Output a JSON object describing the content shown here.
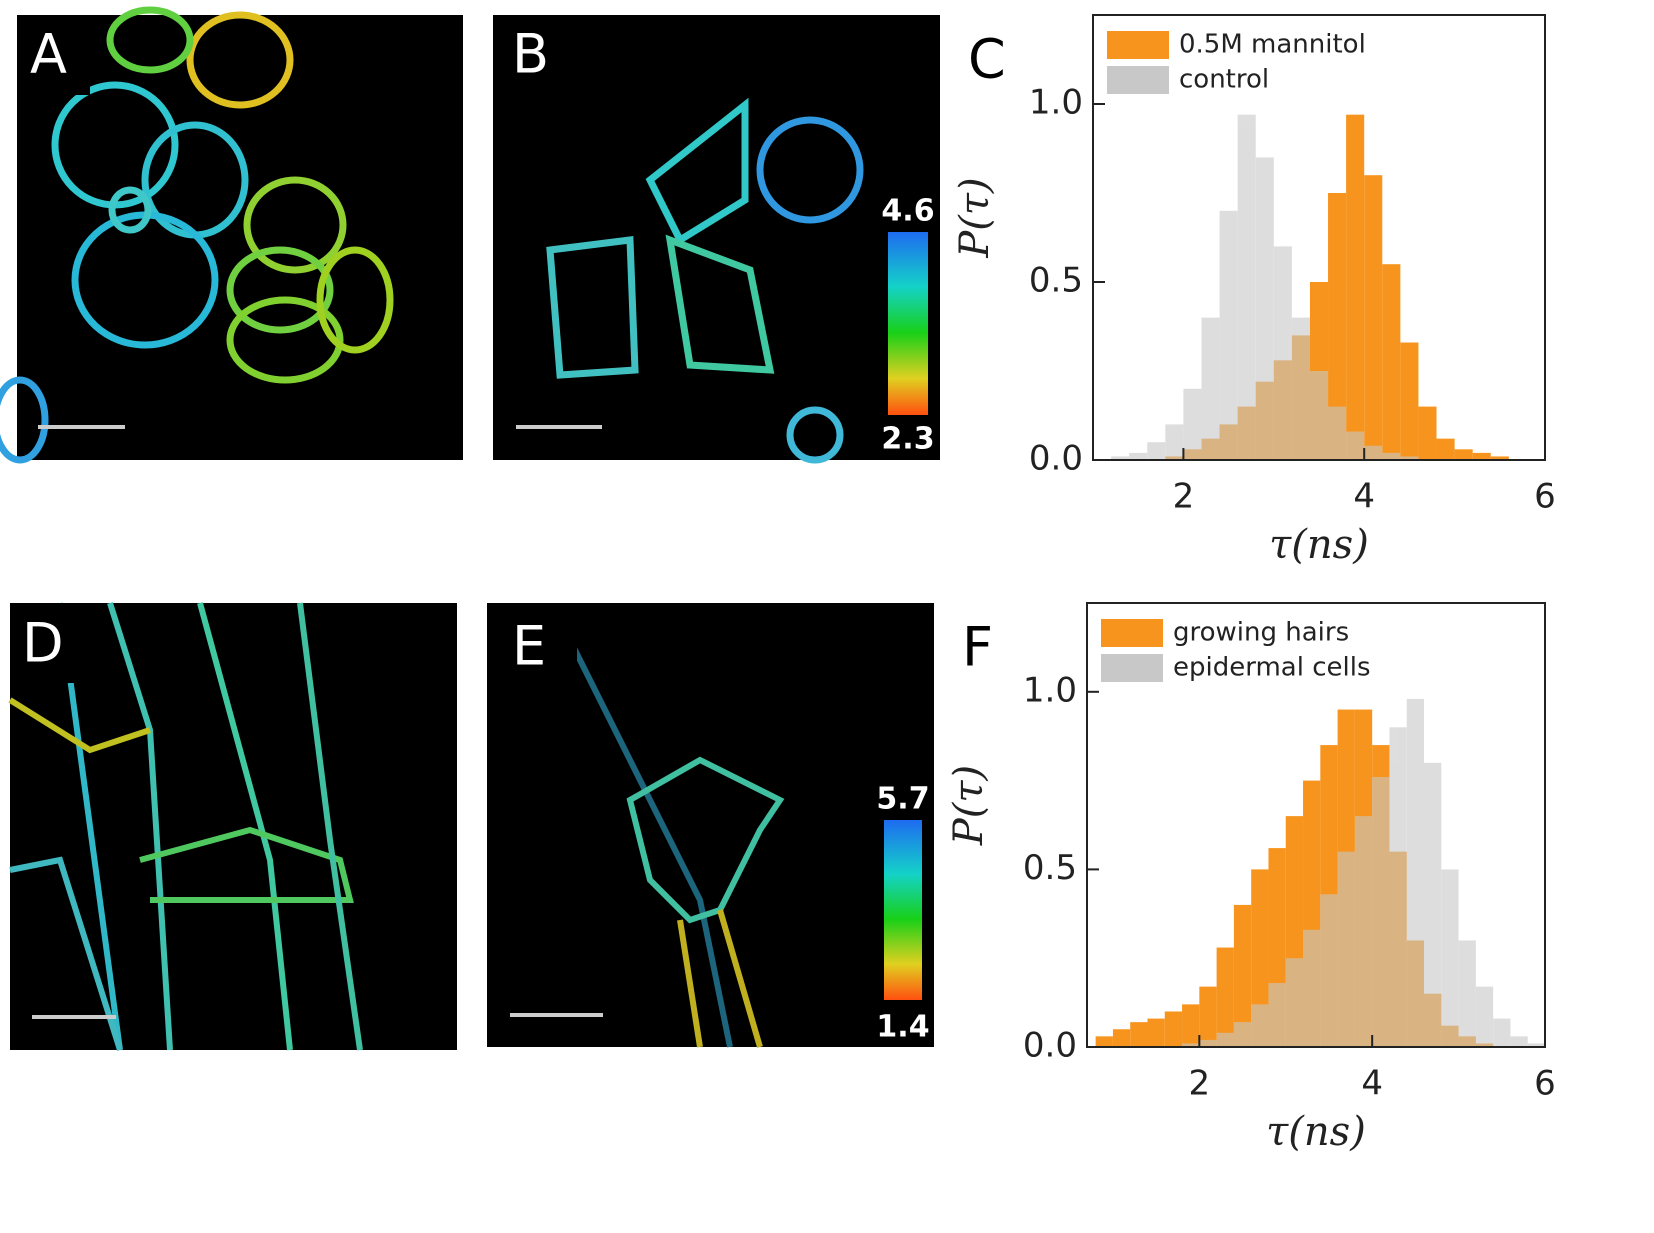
{
  "images": [
    {
      "label": "A"
    },
    {
      "label": "B",
      "colorbar_max": 4.6,
      "colorbar_min": 2.3
    },
    {
      "label": "D"
    },
    {
      "label": "E",
      "colorbar_max": 5.7,
      "colorbar_min": 1.4
    }
  ],
  "chart_data": [
    {
      "type": "histogram",
      "panel_label": "C",
      "xlabel": "τ(ns)",
      "ylabel": "P(τ)",
      "xlim": [
        1,
        6
      ],
      "ylim": [
        0,
        1.25
      ],
      "xticks": [
        2,
        4,
        6
      ],
      "yticks": [
        {
          "value": 0,
          "label": "0.0"
        },
        0.5,
        {
          "value": 1,
          "label": "1.0"
        }
      ],
      "legend": "upper left",
      "bins": [
        1.0,
        1.2,
        1.4,
        1.6,
        1.8,
        2.0,
        2.2,
        2.4,
        2.6,
        2.8,
        3.0,
        3.2,
        3.4,
        3.6,
        3.8,
        4.0,
        4.2,
        4.4,
        4.6,
        4.8,
        5.0,
        5.2,
        5.4,
        5.6,
        5.8,
        6.0
      ],
      "series": [
        {
          "name": "0.5M mannitol",
          "color": "#f7941d",
          "values": [
            0,
            0,
            0,
            0,
            0.01,
            0.03,
            0.06,
            0.1,
            0.15,
            0.22,
            0.28,
            0.35,
            0.5,
            0.75,
            0.97,
            0.8,
            0.55,
            0.33,
            0.15,
            0.06,
            0.03,
            0.02,
            0.01,
            0,
            0
          ]
        },
        {
          "name": "control",
          "color": "#c8c8c8",
          "values": [
            0,
            0.01,
            0.02,
            0.05,
            0.1,
            0.2,
            0.4,
            0.7,
            0.97,
            0.85,
            0.6,
            0.4,
            0.25,
            0.15,
            0.08,
            0.04,
            0.02,
            0.01,
            0,
            0,
            0,
            0,
            0,
            0,
            0
          ]
        }
      ]
    },
    {
      "type": "histogram",
      "panel_label": "F",
      "xlabel": "τ(ns)",
      "ylabel": "P(τ)",
      "xlim": [
        0.7,
        6
      ],
      "ylim": [
        0,
        1.25
      ],
      "xticks": [
        2,
        4,
        6
      ],
      "yticks": [
        {
          "value": 0,
          "label": "0.0"
        },
        0.5,
        {
          "value": 1,
          "label": "1.0"
        }
      ],
      "legend": "upper left",
      "bins": [
        0.8,
        1.0,
        1.2,
        1.4,
        1.6,
        1.8,
        2.0,
        2.2,
        2.4,
        2.6,
        2.8,
        3.0,
        3.2,
        3.4,
        3.6,
        3.8,
        4.0,
        4.2,
        4.4,
        4.6,
        4.8,
        5.0,
        5.2,
        5.4,
        5.6,
        5.8,
        6.0
      ],
      "series": [
        {
          "name": "growing hairs",
          "color": "#f7941d",
          "values": [
            0.03,
            0.05,
            0.07,
            0.08,
            0.1,
            0.12,
            0.17,
            0.28,
            0.4,
            0.5,
            0.56,
            0.65,
            0.75,
            0.85,
            0.95,
            0.95,
            0.85,
            0.55,
            0.3,
            0.15,
            0.06,
            0.03,
            0.01,
            0,
            0,
            0
          ]
        },
        {
          "name": "epidermal cells",
          "color": "#c8c8c8",
          "values": [
            0,
            0,
            0,
            0,
            0,
            0.01,
            0.02,
            0.04,
            0.07,
            0.12,
            0.18,
            0.25,
            0.33,
            0.43,
            0.55,
            0.65,
            0.76,
            0.9,
            0.98,
            0.8,
            0.5,
            0.3,
            0.17,
            0.08,
            0.03,
            0.01
          ]
        }
      ]
    }
  ]
}
